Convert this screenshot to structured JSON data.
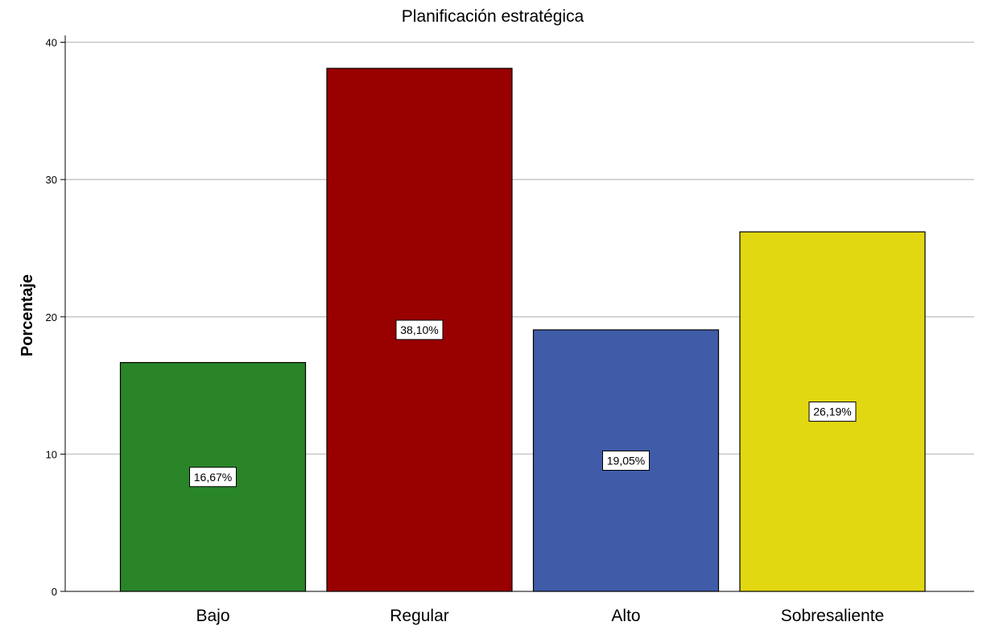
{
  "chart_data": {
    "type": "bar",
    "title": "Planificación estratégica",
    "ylabel": "Porcentaje",
    "xlabel": "",
    "categories": [
      "Bajo",
      "Regular",
      "Alto",
      "Sobresaliente"
    ],
    "values": [
      16.67,
      38.1,
      19.05,
      26.19
    ],
    "data_labels": [
      "16,67%",
      "38,10%",
      "19,05%",
      "26,19%"
    ],
    "colors": [
      "#2a8529",
      "#990000",
      "#405ca8",
      "#e2d811"
    ],
    "yticks": [
      0,
      10,
      20,
      30,
      40
    ],
    "ylim": [
      0,
      40.5
    ],
    "grid": true,
    "legend": "none"
  }
}
